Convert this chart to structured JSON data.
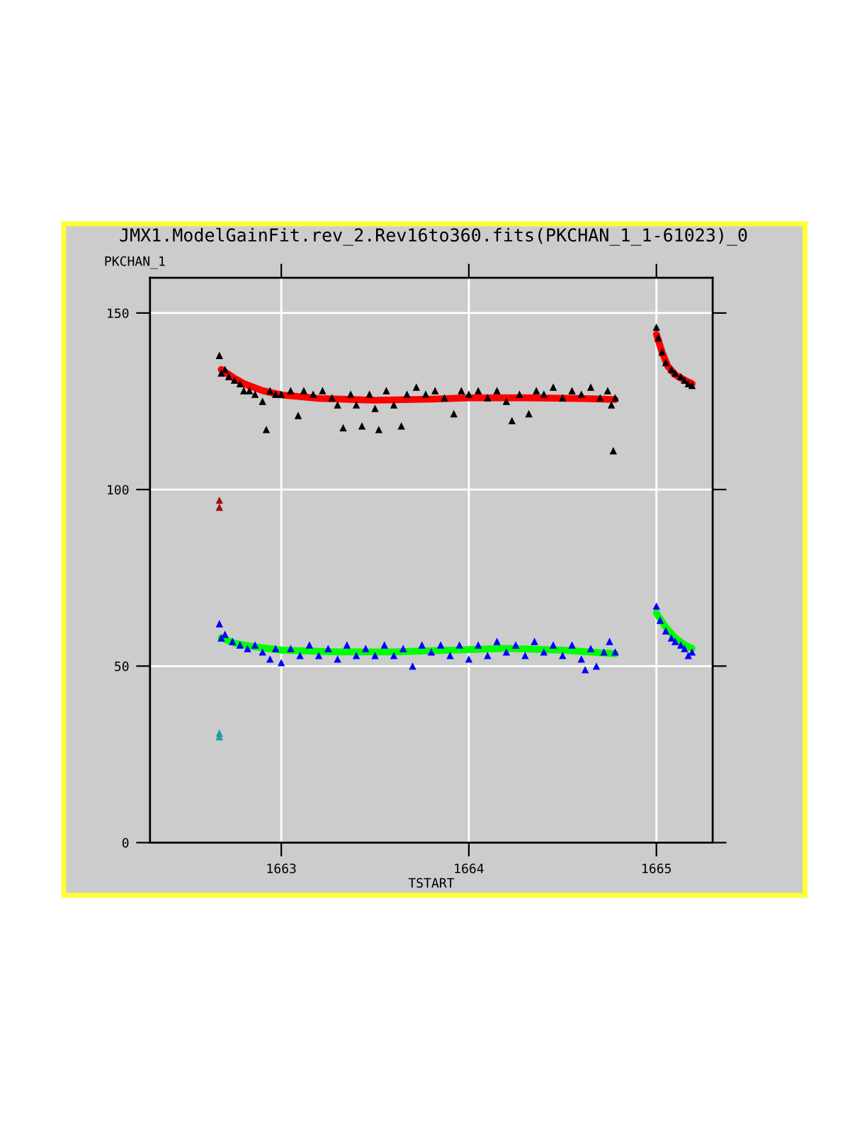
{
  "chart_data": {
    "type": "scatter",
    "title": "JMX1.ModelGainFit.rev_2.Rev16to360.fits(PKCHAN_1_1-61023)_0",
    "xlabel": "TSTART",
    "ylabel": "PKCHAN_1",
    "xlim": [
      1662.3,
      1665.3
    ],
    "xticks": [
      1663,
      1664,
      1665
    ],
    "ylim": [
      0,
      160
    ],
    "yticks": [
      0,
      50,
      100,
      150
    ],
    "grid": true,
    "marker": "triangle",
    "series": [
      {
        "color": "#000000",
        "x": [
          1662.67,
          1662.68,
          1662.7,
          1662.72,
          1662.75,
          1662.78,
          1662.8,
          1662.83,
          1662.86,
          1662.9,
          1662.92,
          1662.94,
          1662.97,
          1663.0,
          1663.05,
          1663.09,
          1663.12,
          1663.17,
          1663.22,
          1663.27,
          1663.3,
          1663.33,
          1663.37,
          1663.4,
          1663.43,
          1663.47,
          1663.5,
          1663.52,
          1663.56,
          1663.6,
          1663.64,
          1663.67,
          1663.72,
          1663.77,
          1663.82,
          1663.87,
          1663.92,
          1663.96,
          1664.0,
          1664.05,
          1664.1,
          1664.15,
          1664.2,
          1664.23,
          1664.27,
          1664.32,
          1664.36,
          1664.4,
          1664.45,
          1664.5,
          1664.55,
          1664.6,
          1664.65,
          1664.7,
          1664.74,
          1664.76,
          1664.77,
          1664.78,
          1665.0,
          1665.01,
          1665.03,
          1665.05,
          1665.08,
          1665.1,
          1665.13,
          1665.15,
          1665.17,
          1665.19
        ],
        "values": [
          138,
          133,
          134,
          132,
          131,
          130,
          128,
          128,
          127,
          125,
          117,
          128,
          127,
          127,
          128,
          121,
          128,
          127,
          128,
          126,
          124,
          117.5,
          127,
          124,
          118,
          127,
          123,
          117,
          128,
          124,
          118,
          127,
          129,
          127,
          128,
          126,
          121.5,
          128,
          127,
          128,
          126,
          128,
          125,
          119.5,
          127,
          121.5,
          128,
          127,
          129,
          126,
          128,
          127,
          129,
          126,
          128,
          124,
          111,
          126,
          146,
          143,
          139,
          136,
          134,
          133,
          132,
          131,
          130,
          129.5
        ]
      },
      {
        "color": "#0000ff",
        "x": [
          1662.67,
          1662.68,
          1662.7,
          1662.74,
          1662.78,
          1662.82,
          1662.86,
          1662.9,
          1662.94,
          1662.97,
          1663.0,
          1663.05,
          1663.1,
          1663.15,
          1663.2,
          1663.25,
          1663.3,
          1663.35,
          1663.4,
          1663.45,
          1663.5,
          1663.55,
          1663.6,
          1663.65,
          1663.7,
          1663.75,
          1663.8,
          1663.85,
          1663.9,
          1663.95,
          1664.0,
          1664.05,
          1664.1,
          1664.15,
          1664.2,
          1664.25,
          1664.3,
          1664.35,
          1664.4,
          1664.45,
          1664.5,
          1664.55,
          1664.6,
          1664.62,
          1664.65,
          1664.68,
          1664.72,
          1664.75,
          1664.78,
          1665.0,
          1665.02,
          1665.05,
          1665.08,
          1665.1,
          1665.13,
          1665.15,
          1665.17,
          1665.19
        ],
        "values": [
          62,
          58,
          59,
          57,
          56,
          55,
          56,
          54,
          52,
          55,
          51,
          55,
          53,
          56,
          53,
          55,
          52,
          56,
          53,
          55,
          53,
          56,
          53,
          55,
          50,
          56,
          54,
          56,
          53,
          56,
          52,
          56,
          53,
          57,
          54,
          56,
          53,
          57,
          54,
          56,
          53,
          56,
          52,
          49,
          55,
          50,
          54,
          57,
          54,
          67,
          63,
          60,
          58,
          57,
          56,
          55,
          53,
          54
        ]
      },
      {
        "type": "line",
        "marker": "none",
        "color": "#ff0000",
        "x": [
          1662.68,
          1662.75,
          1662.8,
          1662.9,
          1663.0,
          1663.2,
          1663.5,
          1663.8,
          1664.0,
          1664.3,
          1664.6,
          1664.78
        ],
        "values": [
          134,
          131.5,
          130,
          128,
          126.8,
          125.8,
          125.3,
          125.6,
          126,
          126,
          125.8,
          125.5
        ]
      },
      {
        "type": "line",
        "marker": "none",
        "color": "#ff0000",
        "x": [
          1665.0,
          1665.03,
          1665.06,
          1665.1,
          1665.15,
          1665.19
        ],
        "values": [
          144,
          139,
          135,
          132.5,
          131,
          130
        ]
      },
      {
        "type": "line",
        "marker": "none",
        "color": "#00ff00",
        "x": [
          1662.68,
          1662.75,
          1662.85,
          1663.0,
          1663.3,
          1663.6,
          1663.9,
          1664.2,
          1664.5,
          1664.78
        ],
        "values": [
          58,
          56.5,
          55.5,
          54.5,
          54,
          54,
          54.5,
          55,
          54.5,
          53.5
        ]
      },
      {
        "type": "line",
        "marker": "none",
        "color": "#00ff00",
        "x": [
          1665.0,
          1665.05,
          1665.1,
          1665.15,
          1665.19
        ],
        "values": [
          65,
          61,
          58,
          56,
          55
        ]
      },
      {
        "color": "#a01010",
        "x": [
          1662.67,
          1662.67
        ],
        "values": [
          97,
          95
        ]
      },
      {
        "color": "#20a0a0",
        "x": [
          1662.67,
          1662.67
        ],
        "values": [
          31,
          30
        ]
      }
    ]
  }
}
